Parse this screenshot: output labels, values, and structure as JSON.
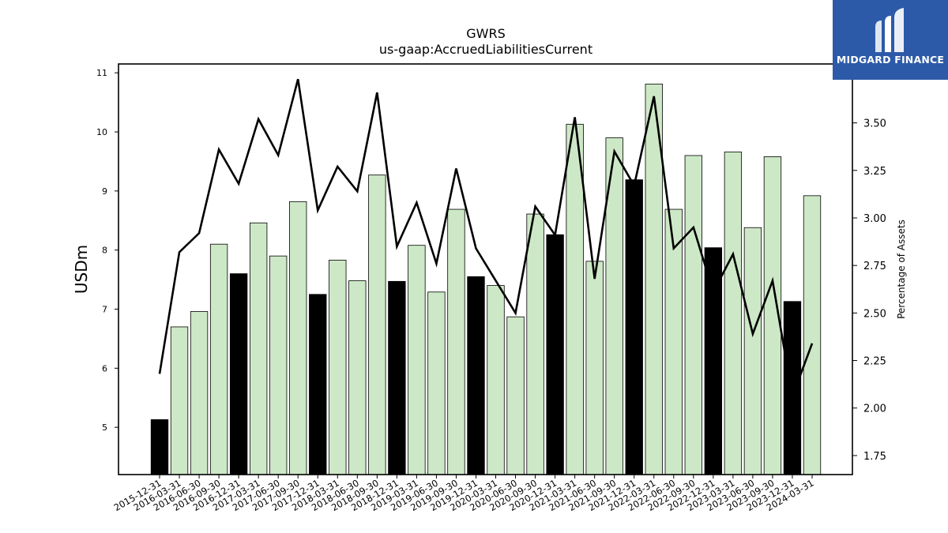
{
  "chart_data": {
    "type": "bar",
    "title": "GWRS",
    "subtitle": "us-gaap:AccruedLiabilitiesCurrent",
    "ylabel": "USDm",
    "y2label": "Percentage of Assets",
    "ylim": [
      4.2,
      11.15
    ],
    "y2lim": [
      1.65,
      3.81
    ],
    "yticks": [
      5,
      6,
      7,
      8,
      9,
      10,
      11
    ],
    "y2ticks": [
      "1.75",
      "2.00",
      "2.25",
      "2.50",
      "2.75",
      "3.00",
      "3.25",
      "3.50"
    ],
    "categories": [
      "2015-12-31",
      "2016-03-31",
      "2016-06-30",
      "2016-09-30",
      "2016-12-31",
      "2017-03-31",
      "2017-06-30",
      "2017-09-30",
      "2017-12-31",
      "2018-03-31",
      "2018-06-30",
      "2018-09-30",
      "2018-12-31",
      "2019-03-31",
      "2019-06-30",
      "2019-09-30",
      "2019-12-31",
      "2020-03-31",
      "2020-06-30",
      "2020-09-30",
      "2020-12-31",
      "2021-03-31",
      "2021-06-30",
      "2021-09-30",
      "2021-12-31",
      "2022-03-31",
      "2022-06-30",
      "2022-09-30",
      "2022-12-31",
      "2023-03-31",
      "2023-06-30",
      "2023-09-30",
      "2023-12-31",
      "2024-03-31"
    ],
    "series": [
      {
        "values": [
          5.13,
          6.7,
          6.96,
          8.1,
          7.6,
          8.46,
          7.9,
          8.82,
          7.25,
          7.83,
          7.48,
          9.27,
          7.47,
          8.08,
          7.29,
          8.69,
          7.55,
          7.4,
          6.87,
          8.61,
          8.26,
          10.13,
          7.81,
          9.9,
          9.19,
          10.81,
          8.69,
          9.6,
          8.04,
          9.66,
          8.38,
          9.58,
          7.13,
          8.92
        ],
        "highlight": [
          true,
          false,
          false,
          false,
          true,
          false,
          false,
          false,
          true,
          false,
          false,
          false,
          true,
          false,
          false,
          false,
          true,
          false,
          false,
          false,
          true,
          false,
          false,
          false,
          true,
          false,
          false,
          false,
          true,
          false,
          false,
          false,
          true,
          false
        ],
        "color": "#cde8c6",
        "highlight_color": "#000000"
      },
      {
        "type": "line",
        "axis": "y2",
        "values": [
          2.18,
          2.82,
          2.92,
          3.36,
          3.18,
          3.52,
          3.33,
          3.73,
          3.04,
          3.27,
          3.14,
          3.66,
          2.85,
          3.08,
          2.76,
          3.26,
          2.84,
          2.67,
          2.5,
          3.06,
          2.91,
          3.53,
          2.68,
          3.35,
          3.17,
          3.64,
          2.84,
          2.95,
          2.61,
          2.81,
          2.39,
          2.67,
          2.06,
          2.34
        ],
        "color": "#000000"
      }
    ],
    "legend": "none",
    "grid": false
  },
  "logo": {
    "text": "MIDGARD FINANCE",
    "background": "#2d5aa8"
  }
}
